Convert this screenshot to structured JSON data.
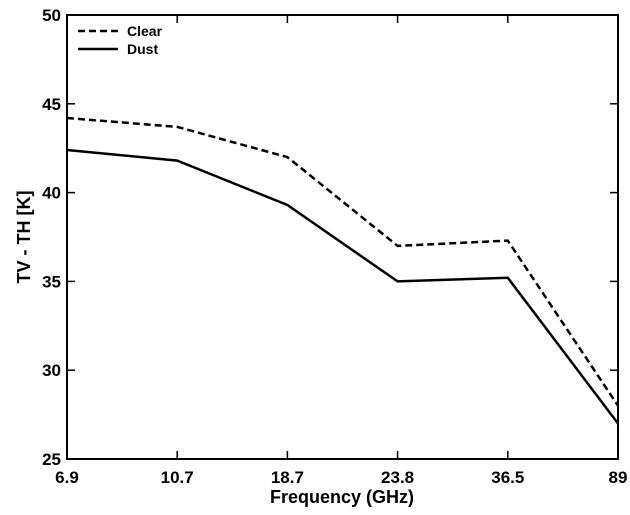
{
  "chart_data": {
    "type": "line",
    "title": "",
    "xlabel": "Frequency (GHz)",
    "ylabel": "TV - TH [K]",
    "categories": [
      "6.9",
      "10.7",
      "18.7",
      "23.8",
      "36.5",
      "89"
    ],
    "ylim": [
      25,
      50
    ],
    "yticks": [
      "25",
      "30",
      "35",
      "40",
      "45",
      "50"
    ],
    "grid": false,
    "legend_position": "top-left",
    "series": [
      {
        "name": "Clear",
        "style": "dashed",
        "color": "#000000",
        "values": [
          44.2,
          43.7,
          42.0,
          37.0,
          37.3,
          28.0
        ]
      },
      {
        "name": "Dust",
        "style": "solid",
        "color": "#000000",
        "values": [
          42.4,
          41.8,
          39.3,
          35.0,
          35.2,
          27.0
        ]
      }
    ]
  }
}
